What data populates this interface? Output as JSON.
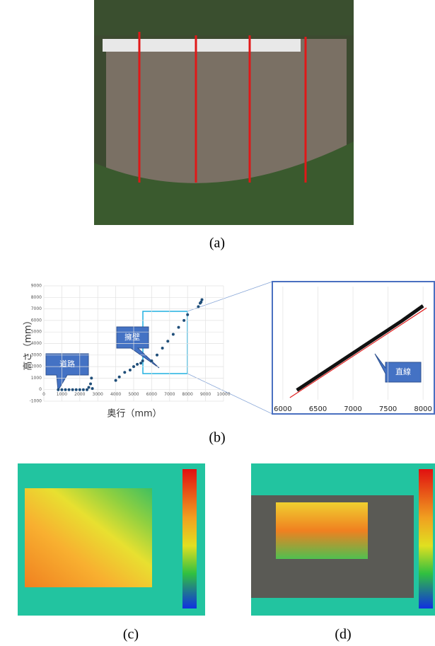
{
  "panels": {
    "a": "(a)",
    "b": "(b)",
    "c": "(c)",
    "d": "(d)"
  },
  "chart_data": [
    {
      "type": "scatter",
      "x_label": "奥行（mm）",
      "y_label": "高さ（mm）",
      "annotations": [
        "擁壁",
        "道路"
      ],
      "x": [
        800,
        1000,
        1200,
        1400,
        1600,
        1800,
        2000,
        2200,
        2400,
        2500,
        2600,
        2650,
        2700,
        4000,
        4200,
        4500,
        4800,
        5000,
        5200,
        5400,
        5500,
        6000,
        6300,
        6600,
        6900,
        7200,
        7500,
        7800,
        8000,
        8600,
        8700,
        8750,
        8800
      ],
      "values": [
        0,
        0,
        0,
        0,
        0,
        0,
        0,
        0,
        0,
        200,
        500,
        1000,
        100,
        800,
        1100,
        1500,
        1700,
        2000,
        2200,
        2300,
        2500,
        2500,
        3000,
        3600,
        4200,
        4800,
        5400,
        6000,
        6500,
        7200,
        7500,
        7600,
        7800
      ],
      "color": "#1f4e79",
      "xlim": [
        0,
        10000
      ],
      "xticks": [
        0,
        1000,
        2000,
        3000,
        4000,
        5000,
        6000,
        7000,
        8000,
        9000,
        10000
      ],
      "ylim": [
        -1000,
        9000
      ],
      "yticks": [
        -1000,
        0,
        1000,
        2000,
        3000,
        4000,
        5000,
        6000,
        7000,
        8000,
        9000
      ],
      "grid": true
    },
    {
      "type": "line",
      "annotations": [
        "直線"
      ],
      "xlim": [
        5900,
        8150
      ],
      "xticks": [
        6000,
        6500,
        7000,
        7500,
        8000
      ],
      "ylim": [
        1700,
        7000
      ],
      "series": [
        {
          "color": "#111111",
          "x": [
            6200,
            6500,
            6800,
            7100,
            7400,
            7700,
            8000
          ],
          "values": [
            2150,
            2800,
            3450,
            4100,
            4750,
            5400,
            6100
          ]
        },
        {
          "color": "#e02020",
          "x": [
            6100,
            8050
          ],
          "values": [
            1800,
            6000
          ]
        }
      ],
      "grid": true
    }
  ]
}
